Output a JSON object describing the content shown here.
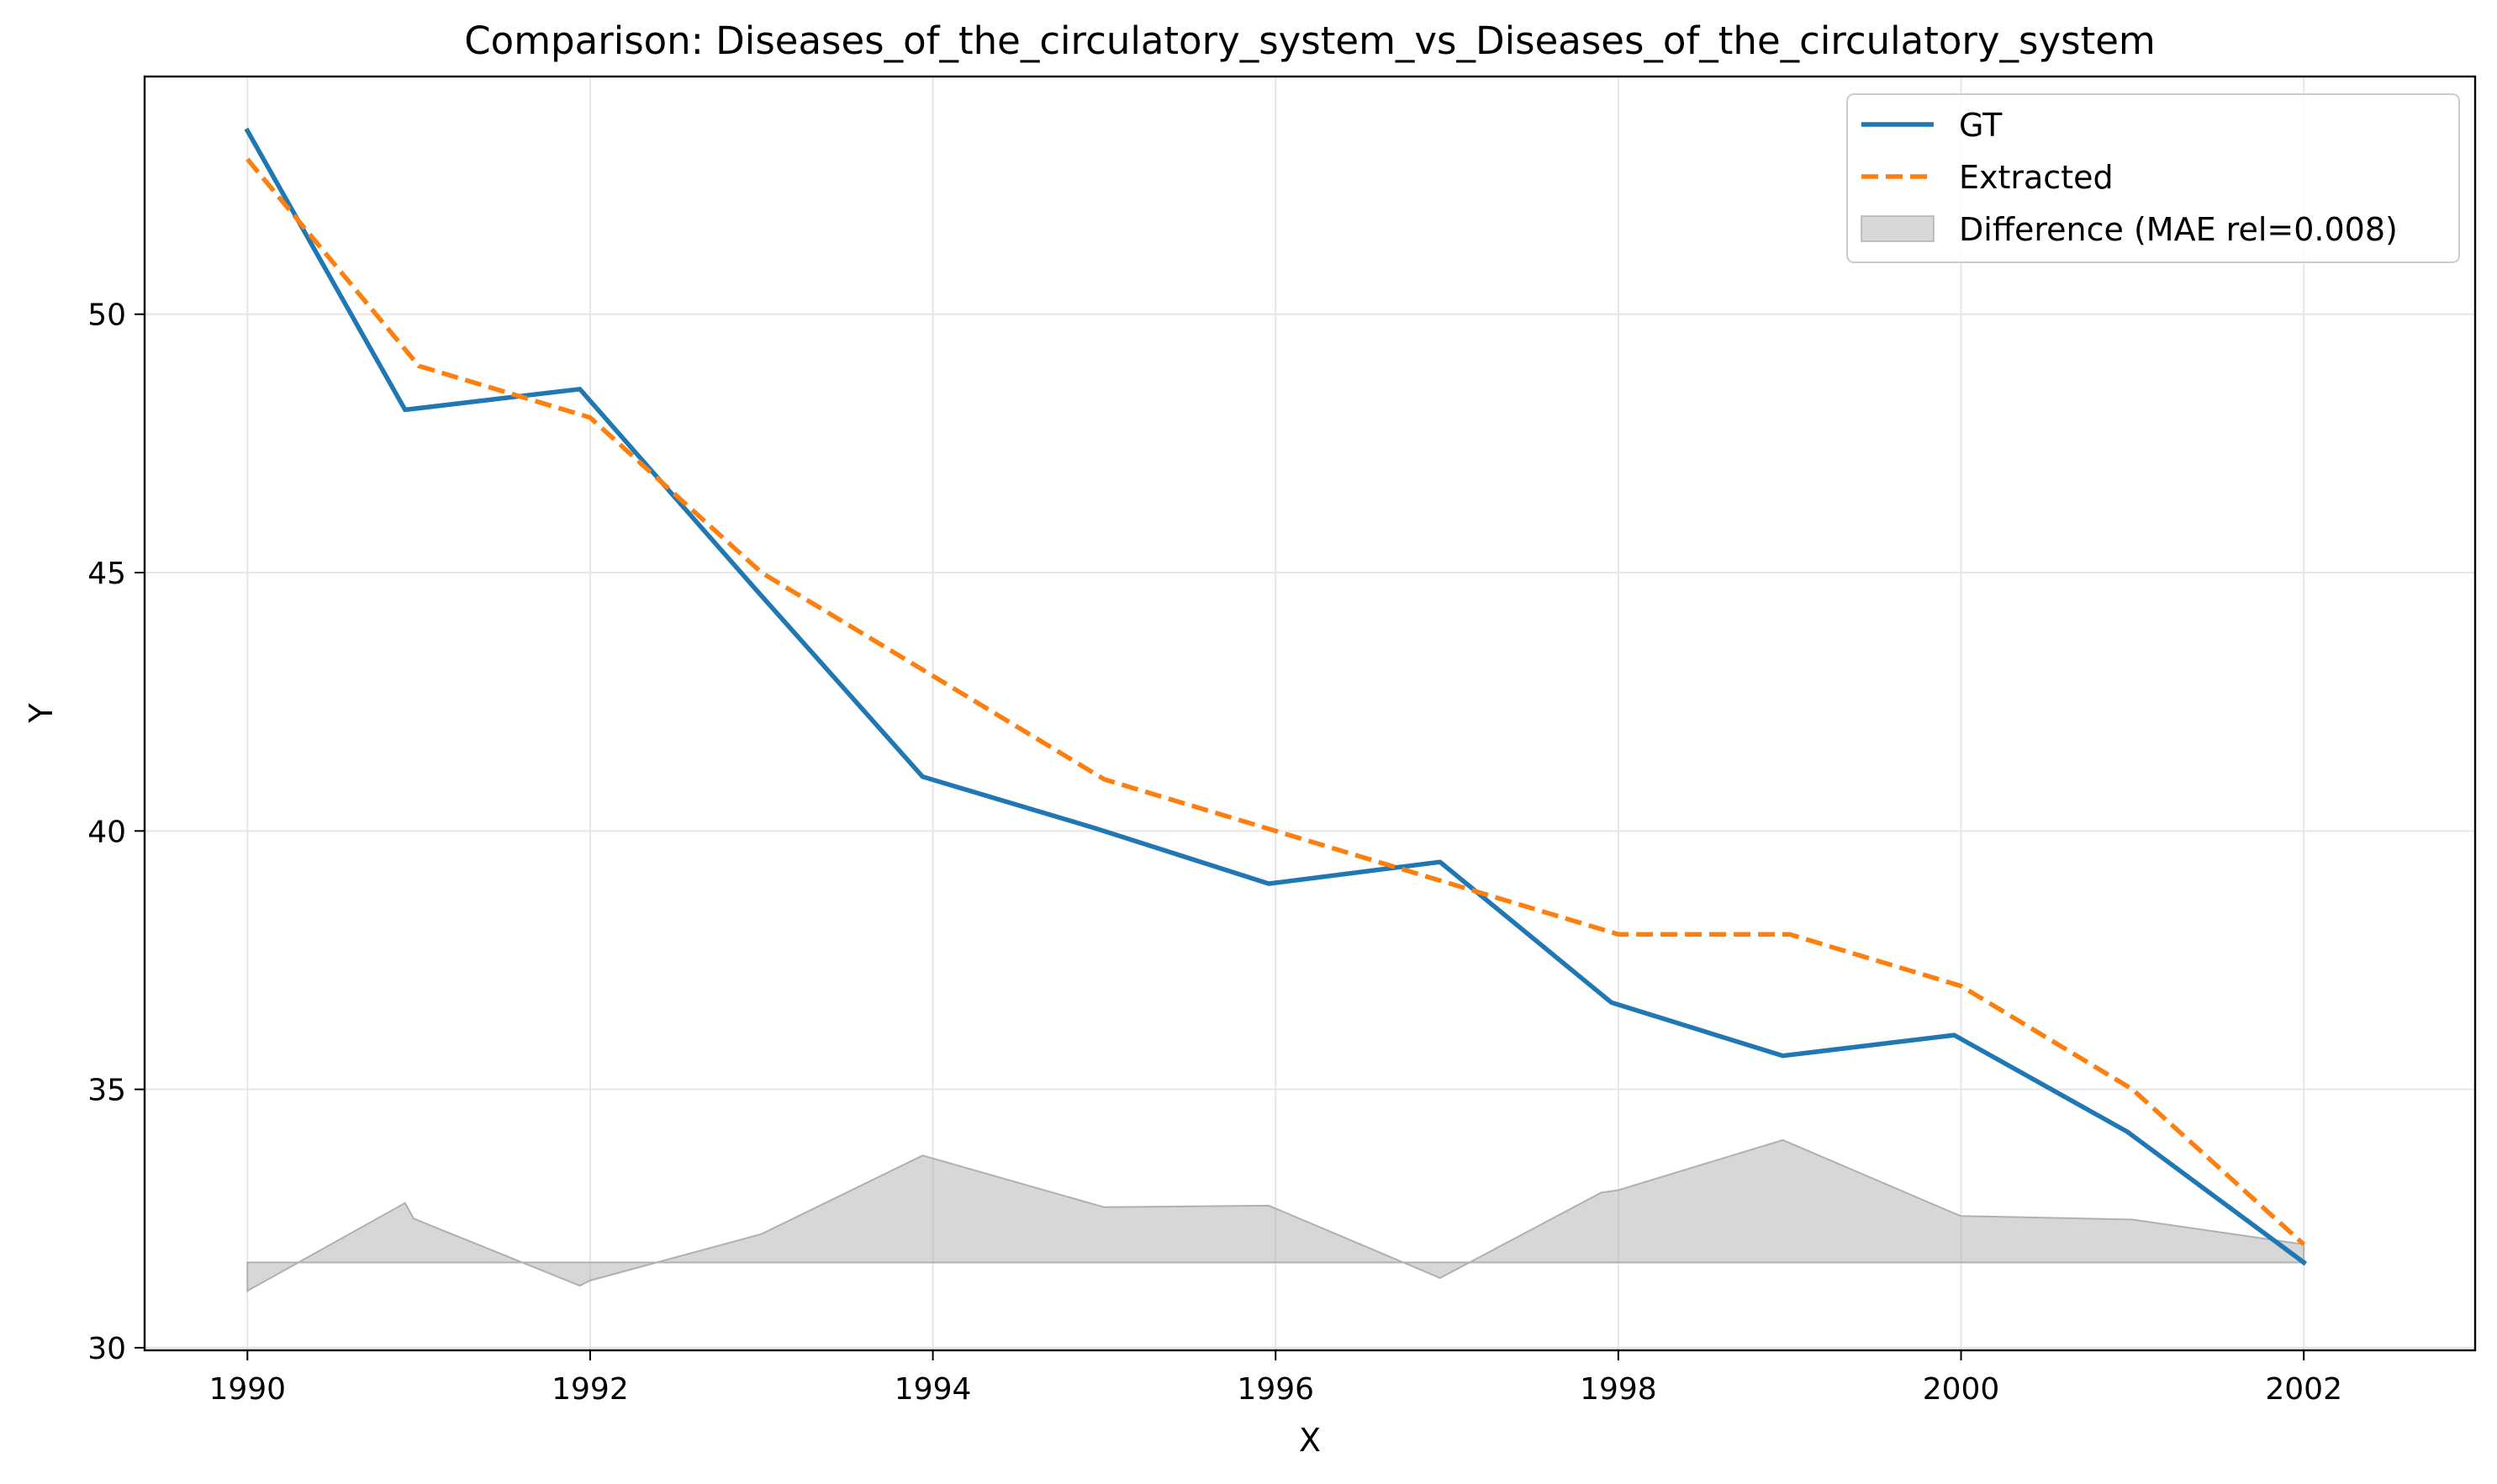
{
  "chart_data": {
    "type": "line",
    "title": "Comparison: Diseases_of_the_circulatory_system_vs_Diseases_of_the_circulatory_system",
    "xlabel": "X",
    "ylabel": "Y",
    "xlim": [
      1989.4,
      2003.0
    ],
    "ylim": [
      29.95,
      54.6
    ],
    "xticks": [
      1990,
      1992,
      1994,
      1996,
      1998,
      2000,
      2002
    ],
    "yticks": [
      30,
      35,
      40,
      45,
      50
    ],
    "grid": true,
    "legend_position": "top-right",
    "series": [
      {
        "name": "GT",
        "style": "solid",
        "color": "#1f77b4",
        "x": [
          1990,
          1990.92,
          1991.94,
          1992.96,
          1993.94,
          1994.95,
          1995.96,
          1996.96,
          1997.96,
          1998.96,
          1999.96,
          2000.97,
          2002
        ],
        "y": [
          53.55,
          48.15,
          48.55,
          44.7,
          41.05,
          40.05,
          38.98,
          39.4,
          36.68,
          35.65,
          36.05,
          34.18,
          31.65
        ]
      },
      {
        "name": "Extracted",
        "style": "dashed",
        "color": "#ff7f0e",
        "x": [
          1990,
          1991,
          1992,
          1993,
          1994,
          1995,
          1996,
          1997,
          1998,
          1999,
          2000,
          2001,
          2002
        ],
        "y": [
          53,
          49,
          48,
          45,
          43,
          41,
          40,
          39,
          38,
          38,
          37,
          35,
          32
        ]
      }
    ],
    "difference_area": {
      "name": "Difference (MAE rel=0.008)",
      "color": "#b0b0b0",
      "baseline": 31.65,
      "x": [
        1990,
        1990.92,
        1990.97,
        1991.94,
        1992.0,
        1993.0,
        1993.94,
        1995.0,
        1995.96,
        1996.96,
        1997.9,
        1998.0,
        1998.96,
        1999.96,
        2000.0,
        2001.0,
        2002
      ],
      "y": [
        31.1,
        32.8,
        32.5,
        31.2,
        31.3,
        32.2,
        33.72,
        32.72,
        32.75,
        31.35,
        33.0,
        33.05,
        34.02,
        32.6,
        32.55,
        32.48,
        32.0
      ]
    }
  }
}
